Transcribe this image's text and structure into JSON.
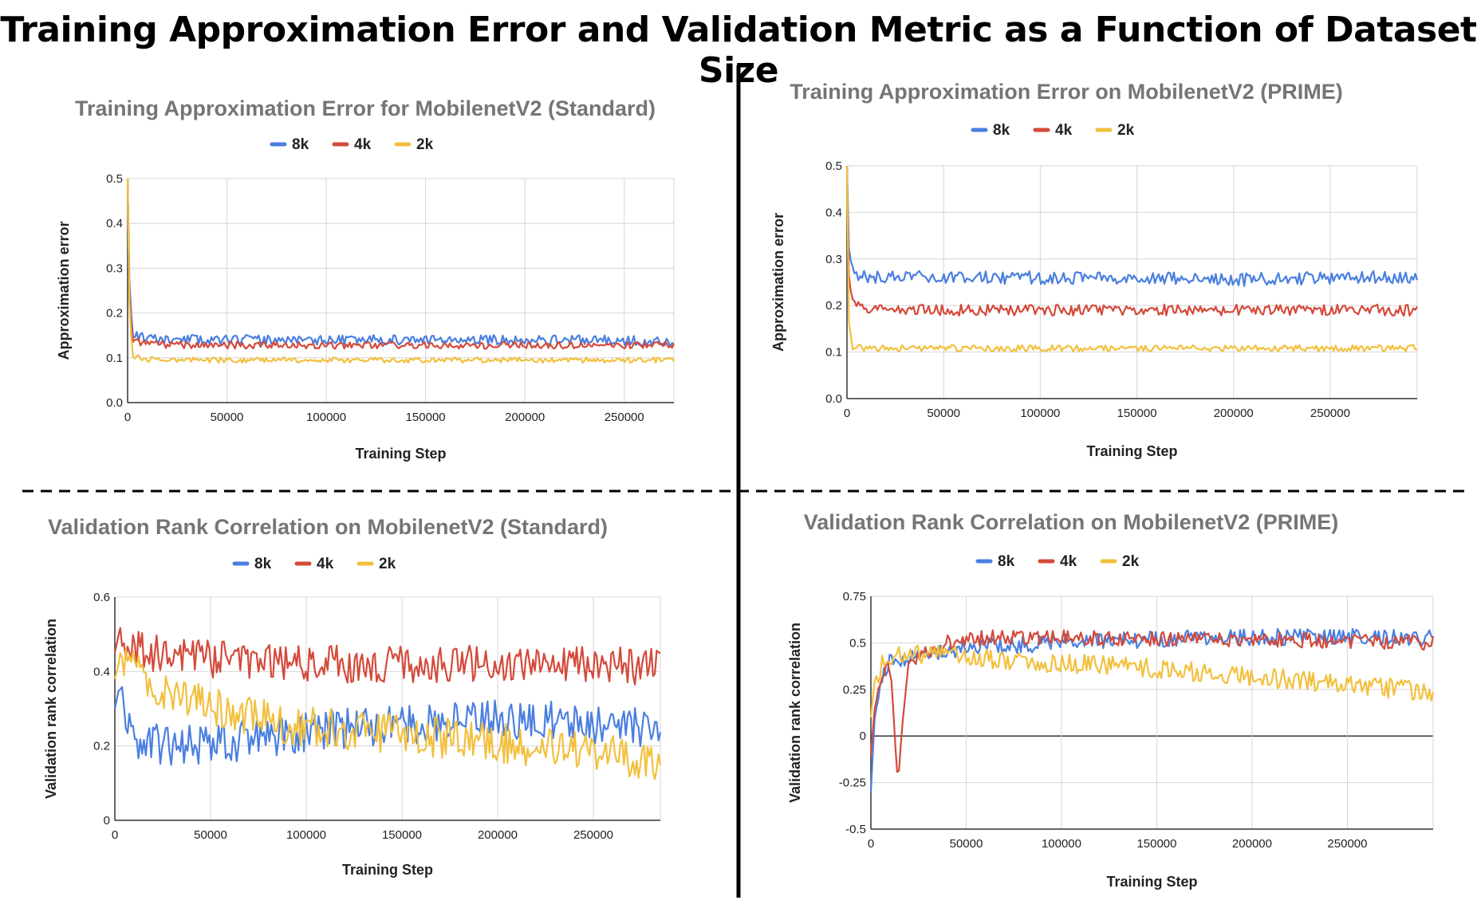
{
  "title": "Training Approximation Error and Validation Metric as a Function of Dataset Size",
  "chart_data": [
    {
      "type": "line",
      "title": "Training Approximation Error for MobilenetV2 (Standard)",
      "xlabel": "Training Step",
      "ylabel": "Approximation error",
      "xlim": [
        0,
        275000
      ],
      "ylim": [
        0,
        0.5
      ],
      "xticks": [
        0,
        50000,
        100000,
        150000,
        200000,
        250000
      ],
      "yticks": [
        "0.0",
        "0.1",
        "0.2",
        "0.3",
        "0.4",
        "0.5"
      ],
      "yticks_values": [
        0,
        0.1,
        0.2,
        0.3,
        0.4,
        0.5
      ],
      "grid": true,
      "legend": "top-center",
      "series": [
        {
          "name": "8k",
          "color": "#4a7fe0",
          "x": [
            0,
            1000,
            2500,
            10000,
            40000,
            80000,
            120000,
            160000,
            200000,
            240000,
            275000
          ],
          "y": [
            0.5,
            0.25,
            0.155,
            0.14,
            0.14,
            0.14,
            0.14,
            0.14,
            0.14,
            0.14,
            0.135
          ],
          "noise": 0.011,
          "seed": 11
        },
        {
          "name": "4k",
          "color": "#d44a3b",
          "x": [
            0,
            1000,
            2500,
            10000,
            40000,
            80000,
            120000,
            160000,
            200000,
            240000,
            275000
          ],
          "y": [
            0.5,
            0.22,
            0.14,
            0.13,
            0.128,
            0.128,
            0.128,
            0.128,
            0.128,
            0.128,
            0.128
          ],
          "noise": 0.008,
          "seed": 12
        },
        {
          "name": "2k",
          "color": "#f2c03e",
          "x": [
            0,
            1000,
            2500,
            10000,
            40000,
            80000,
            120000,
            160000,
            200000,
            240000,
            275000
          ],
          "y": [
            0.5,
            0.2,
            0.105,
            0.097,
            0.095,
            0.095,
            0.095,
            0.095,
            0.095,
            0.095,
            0.095
          ],
          "noise": 0.006,
          "seed": 13
        }
      ]
    },
    {
      "type": "line",
      "title": "Training Approximation Error on MobilenetV2 (PRIME)",
      "xlabel": "Training Step",
      "ylabel": "Approximation error",
      "xlim": [
        0,
        295000
      ],
      "ylim": [
        0,
        0.5
      ],
      "xticks": [
        0,
        50000,
        100000,
        150000,
        200000,
        250000
      ],
      "yticks": [
        "0.0",
        "0.1",
        "0.2",
        "0.3",
        "0.4",
        "0.5"
      ],
      "yticks_values": [
        0,
        0.1,
        0.2,
        0.3,
        0.4,
        0.5
      ],
      "grid": true,
      "legend": "top-center",
      "series": [
        {
          "name": "8k",
          "color": "#4a7fe0",
          "x": [
            0,
            1000,
            3000,
            10000,
            50000,
            100000,
            150000,
            200000,
            250000,
            295000
          ],
          "y": [
            0.5,
            0.32,
            0.27,
            0.26,
            0.26,
            0.26,
            0.26,
            0.255,
            0.26,
            0.26
          ],
          "noise": 0.014,
          "seed": 21
        },
        {
          "name": "4k",
          "color": "#d44a3b",
          "x": [
            0,
            1000,
            3000,
            10000,
            50000,
            100000,
            150000,
            200000,
            250000,
            295000
          ],
          "y": [
            0.5,
            0.26,
            0.2,
            0.19,
            0.19,
            0.19,
            0.19,
            0.19,
            0.19,
            0.19
          ],
          "noise": 0.012,
          "seed": 22
        },
        {
          "name": "2k",
          "color": "#f2c03e",
          "x": [
            0,
            1000,
            3000,
            10000,
            50000,
            100000,
            150000,
            200000,
            250000,
            295000
          ],
          "y": [
            0.5,
            0.16,
            0.11,
            0.108,
            0.108,
            0.108,
            0.108,
            0.108,
            0.108,
            0.108
          ],
          "noise": 0.007,
          "seed": 23
        }
      ]
    },
    {
      "type": "line",
      "title": "Validation Rank Correlation on MobilenetV2 (Standard)",
      "xlabel": "Training Step",
      "ylabel": "Validation rank correlation",
      "xlim": [
        0,
        285000
      ],
      "ylim": [
        0,
        0.6
      ],
      "xticks": [
        0,
        50000,
        100000,
        150000,
        200000,
        250000
      ],
      "yticks": [
        "0",
        "0.2",
        "0.4",
        "0.6"
      ],
      "yticks_values": [
        0,
        0.2,
        0.4,
        0.6
      ],
      "grid": true,
      "legend": "top-center",
      "series": [
        {
          "name": "8k",
          "color": "#4a7fe0",
          "x": [
            0,
            2000,
            10000,
            30000,
            60000,
            100000,
            150000,
            200000,
            250000,
            285000
          ],
          "y": [
            0.3,
            0.35,
            0.22,
            0.2,
            0.21,
            0.24,
            0.26,
            0.27,
            0.26,
            0.25
          ],
          "noise": 0.055,
          "seed": 31
        },
        {
          "name": "4k",
          "color": "#d44a3b",
          "x": [
            0,
            2000,
            10000,
            30000,
            60000,
            100000,
            150000,
            200000,
            250000,
            285000
          ],
          "y": [
            0.45,
            0.5,
            0.46,
            0.44,
            0.43,
            0.42,
            0.42,
            0.42,
            0.42,
            0.41
          ],
          "noise": 0.05,
          "seed": 32
        },
        {
          "name": "2k",
          "color": "#f2c03e",
          "x": [
            0,
            2000,
            10000,
            30000,
            60000,
            100000,
            150000,
            200000,
            250000,
            285000
          ],
          "y": [
            0.38,
            0.42,
            0.4,
            0.34,
            0.29,
            0.25,
            0.23,
            0.21,
            0.18,
            0.16
          ],
          "noise": 0.055,
          "seed": 33
        }
      ]
    },
    {
      "type": "line",
      "title": "Validation Rank Correlation on MobilenetV2 (PRIME)",
      "xlabel": "Training Step",
      "ylabel": "Validation rank correlation",
      "xlim": [
        0,
        295000
      ],
      "ylim": [
        -0.5,
        0.75
      ],
      "xticks": [
        0,
        50000,
        100000,
        150000,
        200000,
        250000
      ],
      "yticks": [
        "-0.5",
        "-0.25",
        "0",
        "0.25",
        "0.5",
        "0.75"
      ],
      "yticks_values": [
        -0.5,
        -0.25,
        0,
        0.25,
        0.5,
        0.75
      ],
      "grid": true,
      "legend": "top-center",
      "series": [
        {
          "name": "8k",
          "color": "#4a7fe0",
          "x": [
            0,
            2000,
            5000,
            10000,
            30000,
            60000,
            100000,
            150000,
            200000,
            250000,
            295000
          ],
          "y": [
            -0.3,
            0.1,
            0.3,
            0.4,
            0.45,
            0.48,
            0.5,
            0.52,
            0.53,
            0.53,
            0.53
          ],
          "noise": 0.045,
          "seed": 41
        },
        {
          "name": "4k",
          "color": "#d44a3b",
          "x": [
            0,
            2000,
            6000,
            10000,
            14000,
            20000,
            40000,
            60000,
            100000,
            150000,
            200000,
            250000,
            295000
          ],
          "y": [
            -0.1,
            0.15,
            0.35,
            0.38,
            -0.23,
            0.4,
            0.5,
            0.53,
            0.53,
            0.52,
            0.52,
            0.51,
            0.5
          ],
          "noise": 0.04,
          "seed": 42
        },
        {
          "name": "2k",
          "color": "#f2c03e",
          "x": [
            0,
            2000,
            8000,
            20000,
            40000,
            60000,
            100000,
            150000,
            200000,
            250000,
            295000
          ],
          "y": [
            0.1,
            0.3,
            0.42,
            0.45,
            0.43,
            0.42,
            0.39,
            0.36,
            0.32,
            0.27,
            0.24
          ],
          "noise": 0.055,
          "seed": 43
        }
      ]
    }
  ]
}
